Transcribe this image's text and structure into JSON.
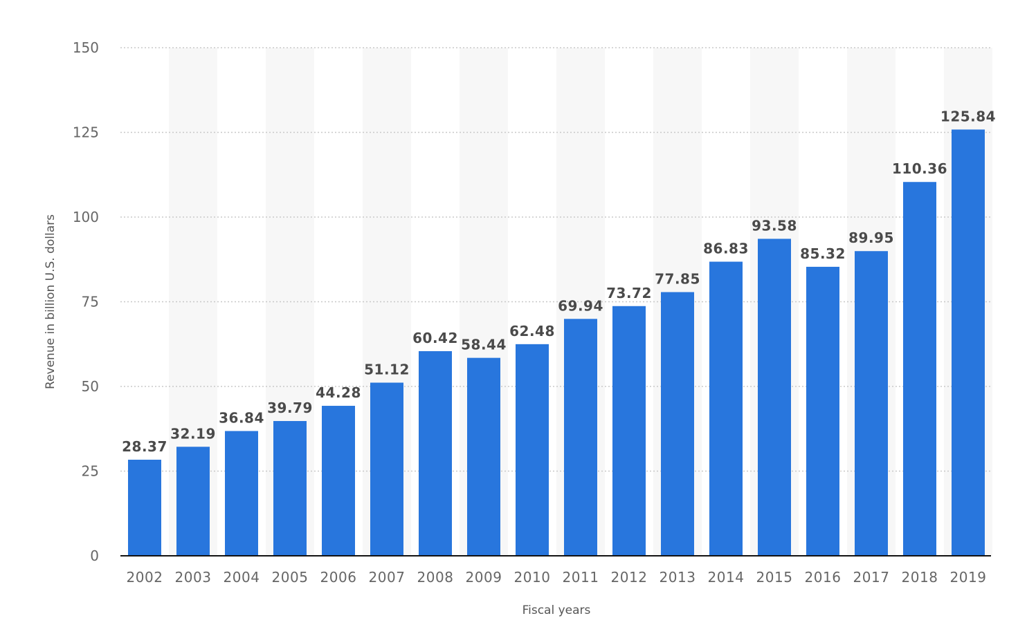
{
  "chart_data": {
    "type": "bar",
    "xlabel": "Fiscal years",
    "ylabel": "Revenue in billion U.S. dollars",
    "ylim": [
      0,
      150
    ],
    "yticks": [
      0,
      25,
      50,
      75,
      100,
      125,
      150
    ],
    "grid": true,
    "bar_color": "#2876dd",
    "categories": [
      "2002",
      "2003",
      "2004",
      "2005",
      "2006",
      "2007",
      "2008",
      "2009",
      "2010",
      "2011",
      "2012",
      "2013",
      "2014",
      "2015",
      "2016",
      "2017",
      "2018",
      "2019"
    ],
    "values": [
      28.37,
      32.19,
      36.84,
      39.79,
      44.28,
      51.12,
      60.42,
      58.44,
      62.48,
      69.94,
      73.72,
      77.85,
      86.83,
      93.58,
      85.32,
      89.95,
      110.36,
      125.84
    ],
    "data_labels": [
      "28.37",
      "32.19",
      "36.84",
      "39.79",
      "44.28",
      "51.12",
      "60.42",
      "58.44",
      "62.48",
      "69.94",
      "73.72",
      "77.85",
      "86.83",
      "93.58",
      "85.32",
      "89.95",
      "110.36",
      "125.84"
    ]
  }
}
